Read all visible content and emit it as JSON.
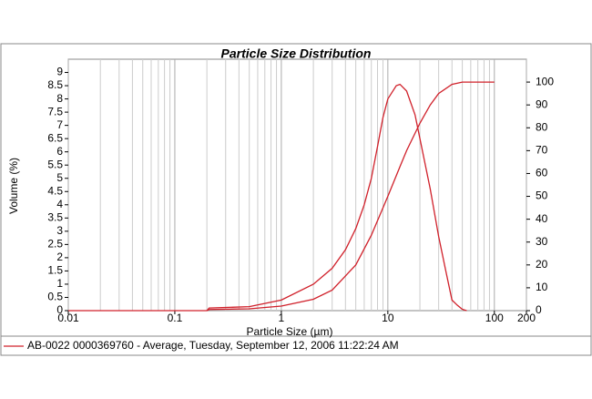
{
  "chart_data": {
    "type": "line",
    "title": "Particle Size Distribution",
    "x_label": "Particle Size (µm)",
    "y_label": "Volume (%)",
    "x_scale": "log",
    "xlim": [
      0.01,
      200
    ],
    "xticks": [
      0.01,
      0.1,
      1,
      10,
      100,
      200
    ],
    "minor_xticks": [
      0.02,
      0.03,
      0.04,
      0.05,
      0.06,
      0.07,
      0.08,
      0.09,
      0.2,
      0.3,
      0.4,
      0.5,
      0.6,
      0.7,
      0.8,
      0.9,
      2,
      3,
      4,
      5,
      6,
      7,
      8,
      9,
      20,
      30,
      40,
      50,
      60,
      70,
      80,
      90
    ],
    "ylim": [
      0,
      9.5
    ],
    "yticks": [
      0,
      0.5,
      1,
      1.5,
      2,
      2.5,
      3,
      3.5,
      4,
      4.5,
      5,
      5.5,
      6,
      6.5,
      7,
      7.5,
      8,
      8.5,
      9
    ],
    "y2lim": [
      0,
      110
    ],
    "y2ticks": [
      0,
      10,
      20,
      30,
      40,
      50,
      60,
      70,
      80,
      90,
      100
    ],
    "grid": "x",
    "series": [
      {
        "name": "AB-0022 0000369760 - Average, Tuesday, September 12, 2006 11:22:24 AM",
        "color": "#d0202a",
        "x": [
          0.01,
          0.2,
          0.21,
          0.5,
          1,
          2,
          3,
          4,
          5,
          6,
          7,
          8,
          9,
          10,
          12,
          13,
          15,
          18,
          20,
          25,
          30,
          35,
          40,
          45,
          50,
          55
        ],
        "values": [
          0,
          0,
          0.1,
          0.15,
          0.4,
          1.0,
          1.6,
          2.3,
          3.1,
          4.0,
          5.0,
          6.2,
          7.3,
          8.0,
          8.5,
          8.55,
          8.3,
          7.4,
          6.5,
          4.6,
          2.8,
          1.5,
          0.4,
          0.2,
          0.05,
          0
        ]
      },
      {
        "color": "#d0202a",
        "axis": "y2",
        "x": [
          0.2,
          0.21,
          0.5,
          1,
          2,
          3,
          5,
          7,
          10,
          13,
          15,
          20,
          25,
          30,
          40,
          50,
          100
        ],
        "values": [
          0,
          0.5,
          0.8,
          2,
          5,
          9,
          20,
          33,
          50,
          63,
          70,
          82,
          90,
          95,
          99,
          100,
          100
        ]
      }
    ]
  }
}
